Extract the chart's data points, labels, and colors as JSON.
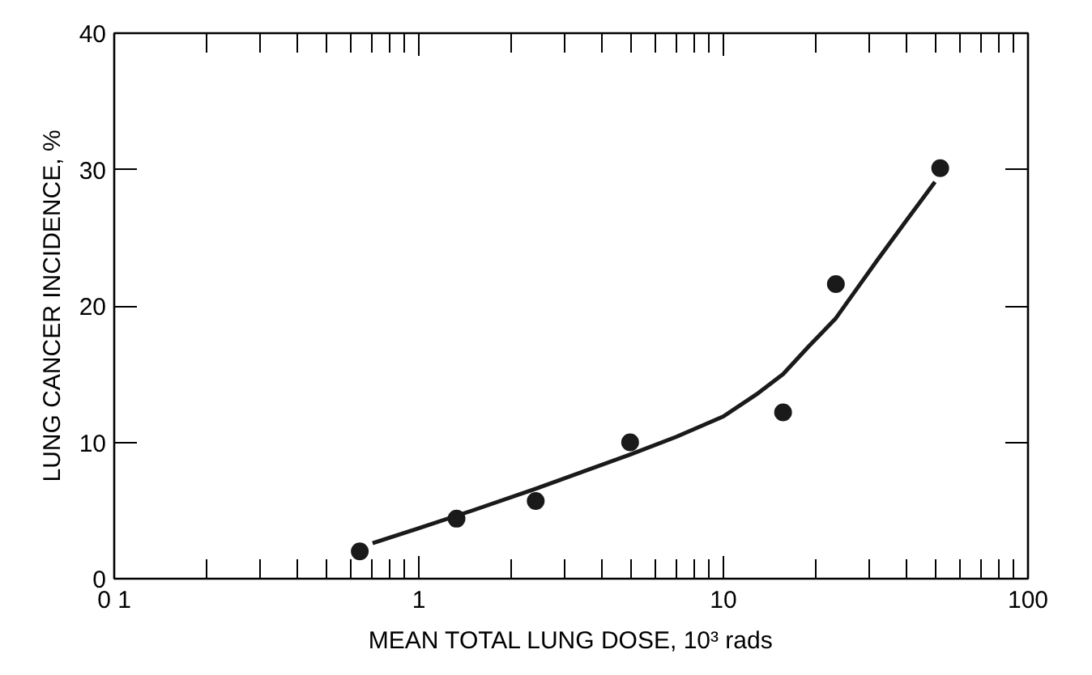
{
  "chart_data": {
    "type": "scatter",
    "xlabel": "MEAN TOTAL LUNG DOSE, 10³ rads",
    "ylabel": "LUNG CANCER INCIDENCE, %",
    "log": "x",
    "xlim": [
      0.1,
      100
    ],
    "xticks": [
      {
        "value": 0.1,
        "label": "0 1"
      },
      1,
      10,
      100
    ],
    "ylim": [
      0,
      40
    ],
    "yticks": [
      0,
      10,
      20,
      30,
      40
    ],
    "grid": false,
    "marker": "circle",
    "series": [
      {
        "color": "#1a1a1a",
        "x": [
          0.64,
          1.33,
          2.42,
          4.94,
          15.7,
          23.4,
          51.5
        ],
        "values": [
          2.0,
          4.4,
          5.7,
          10.0,
          12.2,
          21.6,
          30.1
        ]
      },
      {
        "type": "line",
        "color": "#1a1a1a",
        "line_style": "solid",
        "marker": "none",
        "x": [
          0.705,
          1.0,
          1.5,
          2.42,
          4.94,
          7.0,
          10,
          13.0,
          15.7,
          19.0,
          23.4,
          27.5,
          32.1,
          40.0,
          49.5
        ],
        "values": [
          2.6,
          3.7,
          5.0,
          6.6,
          9.1,
          10.4,
          11.9,
          13.6,
          15.0,
          17.0,
          19.1,
          21.3,
          23.4,
          26.3,
          29.1
        ]
      }
    ]
  }
}
